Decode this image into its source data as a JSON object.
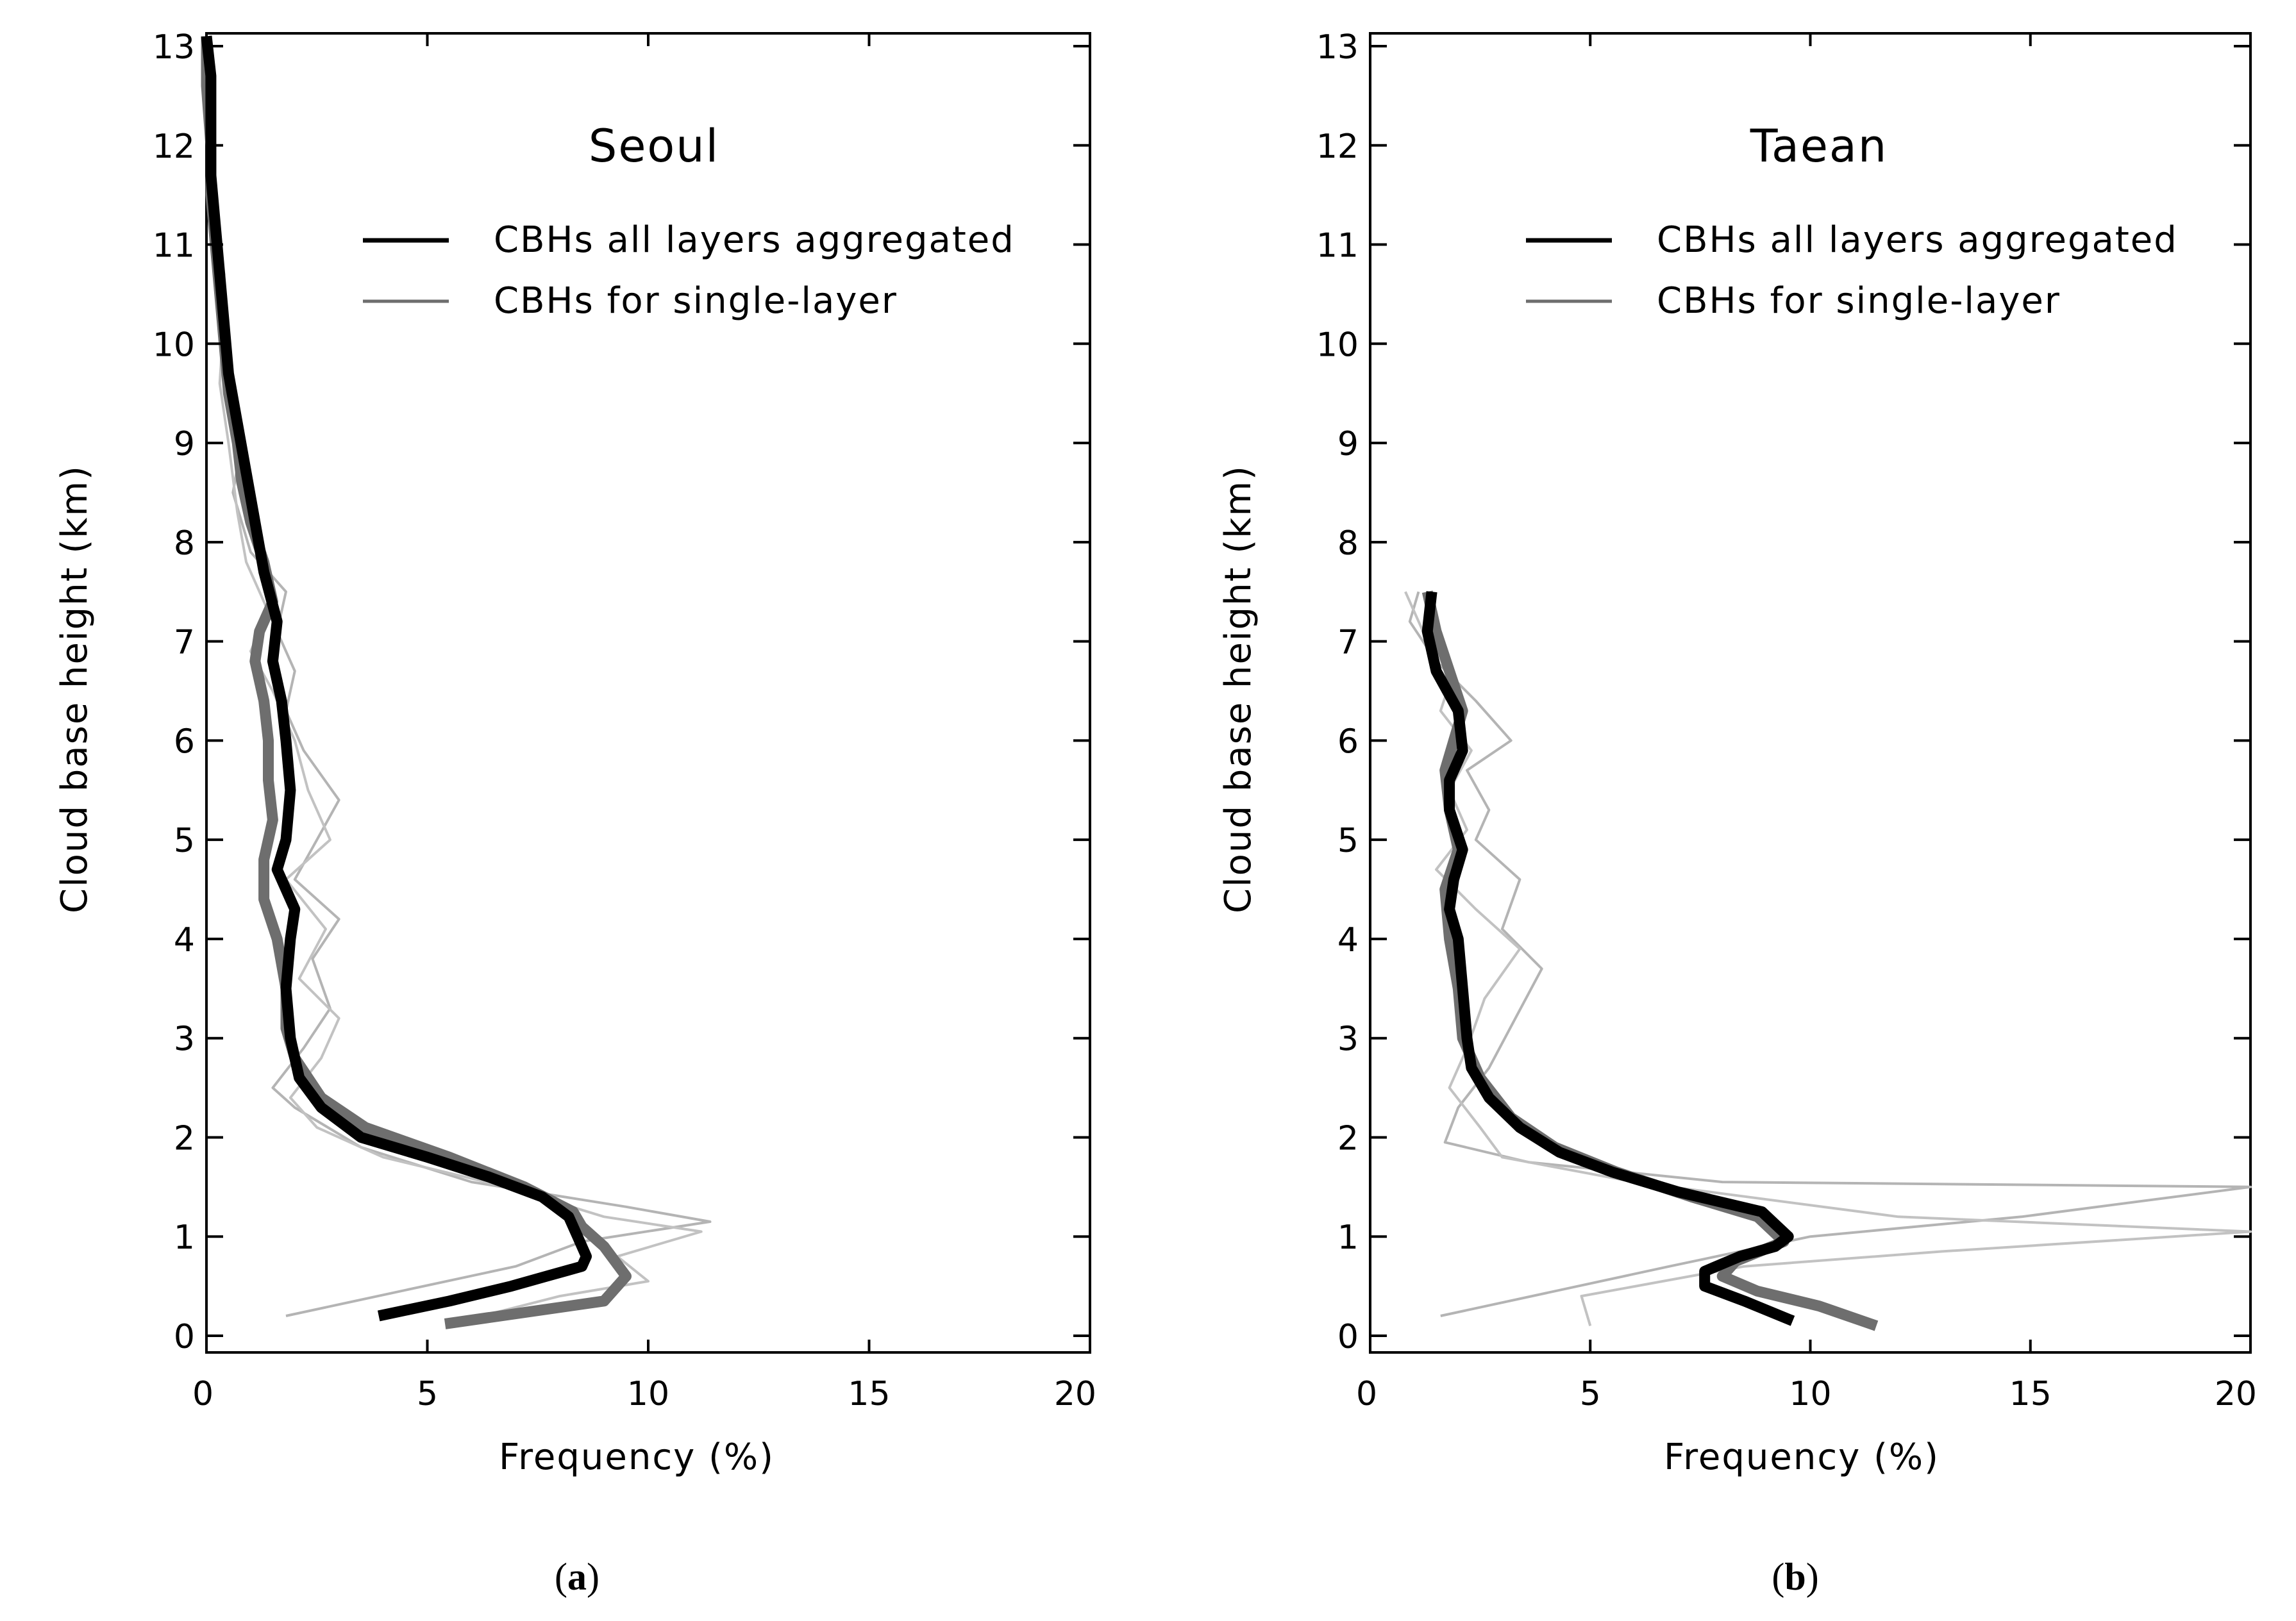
{
  "figure": {
    "captions": [
      {
        "open": "(",
        "letter": "a",
        "close": ")"
      },
      {
        "open": "(",
        "letter": "b",
        "close": ")"
      }
    ]
  },
  "chart_data": [
    {
      "type": "line",
      "title": "Seoul",
      "xlabel": "Frequency (%)",
      "ylabel": "Cloud base height (km)",
      "xlim": [
        0,
        20
      ],
      "ylim": [
        0,
        13
      ],
      "xticks": [
        0,
        5,
        10,
        15,
        20
      ],
      "yticks": [
        0,
        1,
        2,
        3,
        4,
        5,
        6,
        7,
        8,
        9,
        10,
        11,
        12,
        13
      ],
      "legend_position": "top-right",
      "series": [
        {
          "name": "CBHs for single-layer",
          "style": "thick-gray",
          "color": "#6e6e6e",
          "points": [
            [
              5.4,
              0.12
            ],
            [
              9.0,
              0.35
            ],
            [
              9.5,
              0.6
            ],
            [
              9.0,
              0.9
            ],
            [
              8.5,
              1.1
            ],
            [
              8.3,
              1.25
            ],
            [
              7.2,
              1.5
            ],
            [
              5.5,
              1.8
            ],
            [
              3.6,
              2.1
            ],
            [
              2.6,
              2.4
            ],
            [
              2.0,
              2.8
            ],
            [
              1.8,
              3.1
            ],
            [
              1.8,
              3.5
            ],
            [
              1.6,
              4.0
            ],
            [
              1.3,
              4.4
            ],
            [
              1.3,
              4.8
            ],
            [
              1.5,
              5.2
            ],
            [
              1.4,
              5.6
            ],
            [
              1.4,
              6.0
            ],
            [
              1.3,
              6.4
            ],
            [
              1.1,
              6.8
            ],
            [
              1.2,
              7.1
            ],
            [
              1.5,
              7.4
            ],
            [
              1.3,
              7.8
            ],
            [
              1.0,
              8.2
            ],
            [
              0.8,
              8.6
            ],
            [
              0.7,
              9.0
            ],
            [
              0.5,
              9.5
            ],
            [
              0.4,
              10.0
            ],
            [
              0.3,
              10.5
            ],
            [
              0.2,
              11.0
            ],
            [
              0.1,
              11.5
            ],
            [
              0.1,
              12.0
            ],
            [
              0.0,
              12.6
            ],
            [
              0.0,
              13.1
            ]
          ]
        },
        {
          "name": "CBHs all layers aggregated",
          "style": "thick-black",
          "color": "#000000",
          "points": [
            [
              3.9,
              0.2
            ],
            [
              5.5,
              0.35
            ],
            [
              6.9,
              0.5
            ],
            [
              7.7,
              0.6
            ],
            [
              8.5,
              0.7
            ],
            [
              8.6,
              0.8
            ],
            [
              8.4,
              1.0
            ],
            [
              8.2,
              1.2
            ],
            [
              7.6,
              1.4
            ],
            [
              6.4,
              1.6
            ],
            [
              5.0,
              1.8
            ],
            [
              3.5,
              2.0
            ],
            [
              2.6,
              2.3
            ],
            [
              2.1,
              2.6
            ],
            [
              1.9,
              3.0
            ],
            [
              1.8,
              3.5
            ],
            [
              1.9,
              4.0
            ],
            [
              2.0,
              4.3
            ],
            [
              1.6,
              4.7
            ],
            [
              1.8,
              5.0
            ],
            [
              1.9,
              5.5
            ],
            [
              1.8,
              6.0
            ],
            [
              1.7,
              6.4
            ],
            [
              1.5,
              6.8
            ],
            [
              1.6,
              7.2
            ],
            [
              1.3,
              7.7
            ],
            [
              1.1,
              8.2
            ],
            [
              0.9,
              8.7
            ],
            [
              0.7,
              9.2
            ],
            [
              0.5,
              9.7
            ],
            [
              0.4,
              10.2
            ],
            [
              0.3,
              10.7
            ],
            [
              0.2,
              11.2
            ],
            [
              0.1,
              11.7
            ],
            [
              0.1,
              12.2
            ],
            [
              0.1,
              12.7
            ],
            [
              0.0,
              13.1
            ]
          ]
        },
        {
          "name": "thin gray trace 1",
          "style": "thin-light-gray",
          "color": "#b4b4b4",
          "points": [
            [
              1.8,
              0.2
            ],
            [
              7.0,
              0.7
            ],
            [
              8.5,
              0.95
            ],
            [
              11.4,
              1.15
            ],
            [
              9.5,
              1.3
            ],
            [
              6.0,
              1.55
            ],
            [
              3.5,
              1.9
            ],
            [
              2.0,
              2.3
            ],
            [
              1.5,
              2.5
            ],
            [
              2.2,
              2.9
            ],
            [
              2.8,
              3.3
            ],
            [
              2.4,
              3.8
            ],
            [
              3.0,
              4.2
            ],
            [
              2.0,
              4.6
            ],
            [
              2.5,
              5.0
            ],
            [
              3.0,
              5.4
            ],
            [
              2.2,
              5.9
            ],
            [
              1.8,
              6.3
            ],
            [
              2.0,
              6.7
            ],
            [
              1.6,
              7.1
            ],
            [
              1.8,
              7.5
            ],
            [
              1.0,
              7.9
            ],
            [
              0.6,
              8.5
            ],
            [
              0.8,
              9.0
            ],
            [
              0.5,
              9.6
            ],
            [
              0.3,
              10.2
            ],
            [
              0.4,
              10.7
            ],
            [
              0.2,
              11.3
            ],
            [
              0.1,
              12.0
            ],
            [
              0.0,
              13.0
            ]
          ]
        },
        {
          "name": "thin gray trace 2",
          "style": "thin-light-gray",
          "color": "#c2c2c2",
          "points": [
            [
              5.8,
              0.15
            ],
            [
              8.0,
              0.4
            ],
            [
              10.0,
              0.55
            ],
            [
              9.3,
              0.8
            ],
            [
              11.2,
              1.05
            ],
            [
              9.0,
              1.2
            ],
            [
              6.8,
              1.5
            ],
            [
              4.0,
              1.8
            ],
            [
              2.5,
              2.1
            ],
            [
              1.9,
              2.4
            ],
            [
              2.6,
              2.8
            ],
            [
              3.0,
              3.2
            ],
            [
              2.1,
              3.6
            ],
            [
              2.7,
              4.1
            ],
            [
              1.8,
              4.6
            ],
            [
              2.8,
              5.0
            ],
            [
              2.3,
              5.5
            ],
            [
              2.0,
              6.0
            ],
            [
              1.5,
              6.5
            ],
            [
              1.0,
              6.9
            ],
            [
              1.4,
              7.3
            ],
            [
              0.9,
              7.8
            ],
            [
              0.7,
              8.3
            ],
            [
              0.5,
              9.0
            ],
            [
              0.3,
              9.6
            ],
            [
              0.4,
              10.3
            ],
            [
              0.2,
              11.0
            ],
            [
              0.1,
              12.0
            ],
            [
              0.0,
              12.8
            ]
          ]
        }
      ]
    },
    {
      "type": "line",
      "title": "Taean",
      "xlabel": "Frequency (%)",
      "ylabel": "Cloud base height (km)",
      "xlim": [
        0,
        20
      ],
      "ylim": [
        0,
        13
      ],
      "xticks": [
        0,
        5,
        10,
        15,
        20
      ],
      "yticks": [
        0,
        1,
        2,
        3,
        4,
        5,
        6,
        7,
        8,
        9,
        10,
        11,
        12,
        13
      ],
      "legend_position": "top-right",
      "series": [
        {
          "name": "CBHs for single-layer",
          "style": "thick-gray",
          "color": "#6e6e6e",
          "points": [
            [
              11.5,
              0.1
            ],
            [
              10.2,
              0.3
            ],
            [
              8.8,
              0.45
            ],
            [
              8.0,
              0.6
            ],
            [
              8.3,
              0.75
            ],
            [
              9.4,
              0.95
            ],
            [
              8.8,
              1.2
            ],
            [
              7.3,
              1.4
            ],
            [
              5.6,
              1.65
            ],
            [
              4.2,
              1.9
            ],
            [
              3.2,
              2.2
            ],
            [
              2.5,
              2.6
            ],
            [
              2.1,
              3.0
            ],
            [
              2.0,
              3.5
            ],
            [
              1.8,
              4.0
            ],
            [
              1.7,
              4.5
            ],
            [
              2.0,
              4.9
            ],
            [
              1.8,
              5.3
            ],
            [
              1.7,
              5.7
            ],
            [
              1.9,
              6.0
            ],
            [
              2.1,
              6.3
            ],
            [
              1.8,
              6.7
            ],
            [
              1.5,
              7.1
            ],
            [
              1.3,
              7.5
            ]
          ]
        },
        {
          "name": "CBHs all layers aggregated",
          "style": "thick-black",
          "color": "#000000",
          "points": [
            [
              9.6,
              0.15
            ],
            [
              8.5,
              0.35
            ],
            [
              7.6,
              0.5
            ],
            [
              7.6,
              0.65
            ],
            [
              8.4,
              0.8
            ],
            [
              9.2,
              0.9
            ],
            [
              9.5,
              1.0
            ],
            [
              8.9,
              1.25
            ],
            [
              7.0,
              1.45
            ],
            [
              5.5,
              1.65
            ],
            [
              4.3,
              1.85
            ],
            [
              3.4,
              2.1
            ],
            [
              2.7,
              2.4
            ],
            [
              2.3,
              2.7
            ],
            [
              2.2,
              3.0
            ],
            [
              2.1,
              3.5
            ],
            [
              2.0,
              4.0
            ],
            [
              1.8,
              4.3
            ],
            [
              1.9,
              4.6
            ],
            [
              2.1,
              4.9
            ],
            [
              1.8,
              5.3
            ],
            [
              1.8,
              5.6
            ],
            [
              2.1,
              5.9
            ],
            [
              2.0,
              6.3
            ],
            [
              1.5,
              6.7
            ],
            [
              1.3,
              7.1
            ],
            [
              1.4,
              7.5
            ]
          ]
        },
        {
          "name": "thin gray trace 1",
          "style": "thin-light-gray",
          "color": "#b4b4b4",
          "points": [
            [
              1.6,
              0.2
            ],
            [
              6.8,
              0.7
            ],
            [
              10.0,
              1.0
            ],
            [
              14.8,
              1.2
            ],
            [
              20.0,
              1.5
            ],
            [
              8.0,
              1.55
            ],
            [
              3.6,
              1.75
            ],
            [
              1.7,
              1.95
            ],
            [
              2.0,
              2.3
            ],
            [
              2.7,
              2.7
            ],
            [
              3.3,
              3.2
            ],
            [
              3.9,
              3.7
            ],
            [
              3.0,
              4.1
            ],
            [
              3.4,
              4.6
            ],
            [
              2.4,
              5.0
            ],
            [
              2.7,
              5.3
            ],
            [
              2.2,
              5.7
            ],
            [
              3.2,
              6.0
            ],
            [
              2.4,
              6.4
            ],
            [
              1.5,
              6.8
            ],
            [
              0.9,
              7.2
            ],
            [
              1.1,
              7.5
            ]
          ]
        },
        {
          "name": "thin gray trace 2",
          "style": "thin-light-gray",
          "color": "#c2c2c2",
          "points": [
            [
              5.0,
              0.1
            ],
            [
              4.8,
              0.4
            ],
            [
              8.5,
              0.7
            ],
            [
              13.0,
              0.85
            ],
            [
              20.0,
              1.05
            ],
            [
              12.0,
              1.2
            ],
            [
              6.0,
              1.55
            ],
            [
              3.0,
              1.8
            ],
            [
              2.5,
              2.1
            ],
            [
              1.8,
              2.5
            ],
            [
              2.2,
              2.9
            ],
            [
              2.6,
              3.4
            ],
            [
              3.4,
              3.9
            ],
            [
              2.4,
              4.3
            ],
            [
              1.5,
              4.7
            ],
            [
              2.2,
              5.1
            ],
            [
              1.8,
              5.5
            ],
            [
              2.3,
              5.9
            ],
            [
              1.6,
              6.3
            ],
            [
              1.9,
              6.7
            ],
            [
              1.2,
              7.1
            ],
            [
              0.8,
              7.5
            ]
          ]
        }
      ]
    }
  ]
}
